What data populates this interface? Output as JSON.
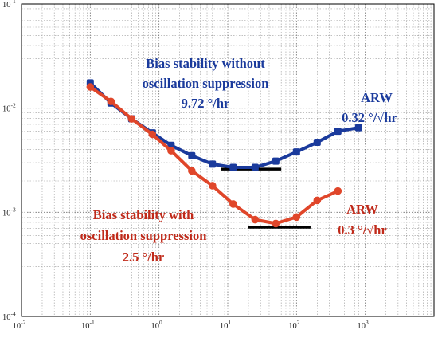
{
  "chart_data": {
    "type": "line",
    "x_scale": "log",
    "y_scale": "log",
    "xlim": [
      0.01,
      10000
    ],
    "ylim": [
      0.0001,
      0.1
    ],
    "grid": true,
    "x_ticks": [
      {
        "value": 0.01,
        "base": "10",
        "exp": "-2"
      },
      {
        "value": 0.1,
        "base": "10",
        "exp": "-1"
      },
      {
        "value": 1,
        "base": "10",
        "exp": "0"
      },
      {
        "value": 10,
        "base": "10",
        "exp": "1"
      },
      {
        "value": 100,
        "base": "10",
        "exp": "2"
      },
      {
        "value": 1000,
        "base": "10",
        "exp": "3"
      }
    ],
    "y_ticks": [
      {
        "value": 0.1,
        "base": "10",
        "exp": "-1"
      },
      {
        "value": 0.01,
        "base": "10",
        "exp": "-2"
      },
      {
        "value": 0.001,
        "base": "10",
        "exp": "-3"
      },
      {
        "value": 0.0001,
        "base": "10",
        "exp": "-4"
      }
    ],
    "series": [
      {
        "color": "#1a3a9c",
        "marker": "square",
        "x": [
          0.1,
          0.2,
          0.4,
          0.8,
          1.5,
          3,
          6,
          12,
          25,
          50,
          100,
          200,
          400,
          800
        ],
        "y": [
          0.0175,
          0.0112,
          0.0079,
          0.0058,
          0.0044,
          0.0035,
          0.0029,
          0.0027,
          0.0027,
          0.0031,
          0.0038,
          0.0047,
          0.006,
          0.0065
        ]
      },
      {
        "color": "#e0462a",
        "marker": "circle",
        "x": [
          0.1,
          0.2,
          0.4,
          0.8,
          1.5,
          3,
          6,
          12,
          25,
          50,
          100,
          200,
          400
        ],
        "y": [
          0.016,
          0.0116,
          0.0079,
          0.0056,
          0.0039,
          0.0025,
          0.0018,
          0.0012,
          0.00085,
          0.00078,
          0.0009,
          0.0013,
          0.0016
        ]
      }
    ],
    "reference_lines": [
      {
        "color": "#000000",
        "x": [
          8,
          60
        ],
        "y": 0.0026
      },
      {
        "color": "#000000",
        "x": [
          20,
          160
        ],
        "y": 0.00072
      }
    ],
    "annotations": [
      {
        "lines": [
          "Bias stability without",
          "oscillation suppression",
          "9.72 °/hr"
        ],
        "color": "#1a3a9c"
      },
      {
        "lines": [
          "ARW",
          "0.32 °/√hr"
        ],
        "color": "#1a3a9c"
      },
      {
        "lines": [
          "Bias stability with",
          "oscillation suppression",
          "2.5 °/hr"
        ],
        "color": "#c02a1a"
      },
      {
        "lines": [
          "ARW",
          "0.3 °/√hr"
        ],
        "color": "#c02a1a"
      }
    ]
  }
}
